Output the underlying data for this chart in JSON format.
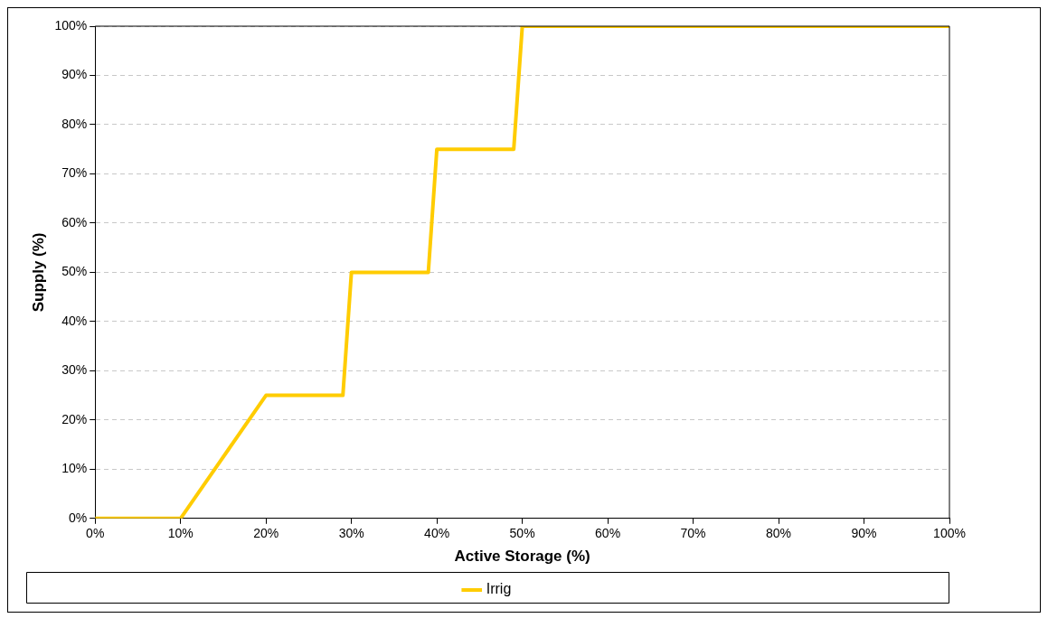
{
  "chart_data": {
    "type": "line",
    "xlabel": "Active Storage (%)",
    "ylabel": "Supply (%)",
    "x": [
      0,
      10,
      20,
      29,
      30,
      39,
      40,
      49,
      50,
      100
    ],
    "series": [
      {
        "name": "Irrig",
        "color": "#ffcc00",
        "values": [
          0,
          0,
          25,
          25,
          50,
          50,
          75,
          75,
          100,
          100
        ]
      }
    ],
    "xlim": [
      0,
      100
    ],
    "ylim": [
      0,
      100
    ],
    "xticks": [
      {
        "value": 0,
        "label": "0%"
      },
      {
        "value": 10,
        "label": "10%"
      },
      {
        "value": 20,
        "label": "20%"
      },
      {
        "value": 30,
        "label": "30%"
      },
      {
        "value": 40,
        "label": "40%"
      },
      {
        "value": 50,
        "label": "50%"
      },
      {
        "value": 60,
        "label": "60%"
      },
      {
        "value": 70,
        "label": "70%"
      },
      {
        "value": 80,
        "label": "80%"
      },
      {
        "value": 90,
        "label": "90%"
      },
      {
        "value": 100,
        "label": "100%"
      }
    ],
    "yticks": [
      {
        "value": 0,
        "label": "0%"
      },
      {
        "value": 10,
        "label": "10%"
      },
      {
        "value": 20,
        "label": "20%"
      },
      {
        "value": 30,
        "label": "30%"
      },
      {
        "value": 40,
        "label": "40%"
      },
      {
        "value": 50,
        "label": "50%"
      },
      {
        "value": 60,
        "label": "60%"
      },
      {
        "value": 70,
        "label": "70%"
      },
      {
        "value": 80,
        "label": "80%"
      },
      {
        "value": 90,
        "label": "90%"
      },
      {
        "value": 100,
        "label": "100%"
      }
    ],
    "grid": "y",
    "legend": "bottom",
    "marker": "none",
    "line_style": "solid"
  }
}
